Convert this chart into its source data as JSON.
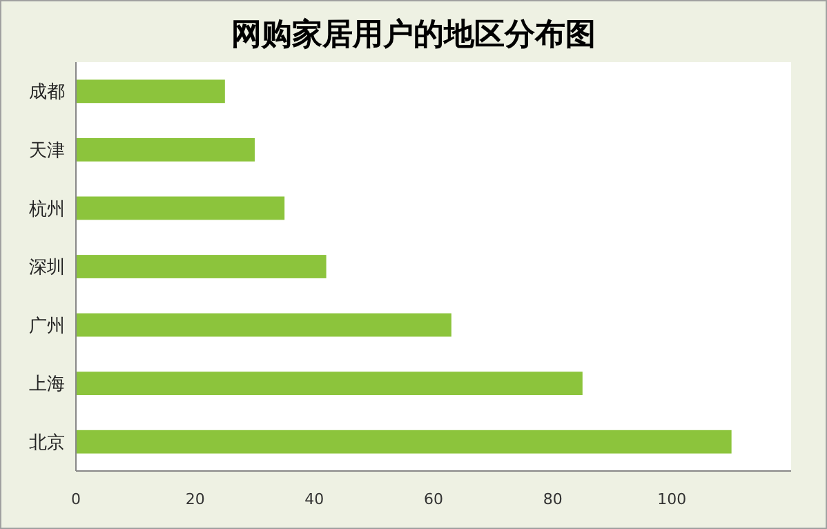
{
  "chart_data": {
    "type": "bar",
    "orientation": "horizontal",
    "title": "网购家居用户的地区分布图",
    "categories": [
      "成都",
      "天津",
      "杭州",
      "深圳",
      "广州",
      "上海",
      "北京"
    ],
    "values": [
      25,
      30,
      35,
      42,
      63,
      85,
      110
    ],
    "color": "#8cc43c",
    "xlim": [
      0,
      120
    ],
    "xticks": [
      0,
      20,
      40,
      60,
      80,
      100
    ],
    "grid": false
  }
}
